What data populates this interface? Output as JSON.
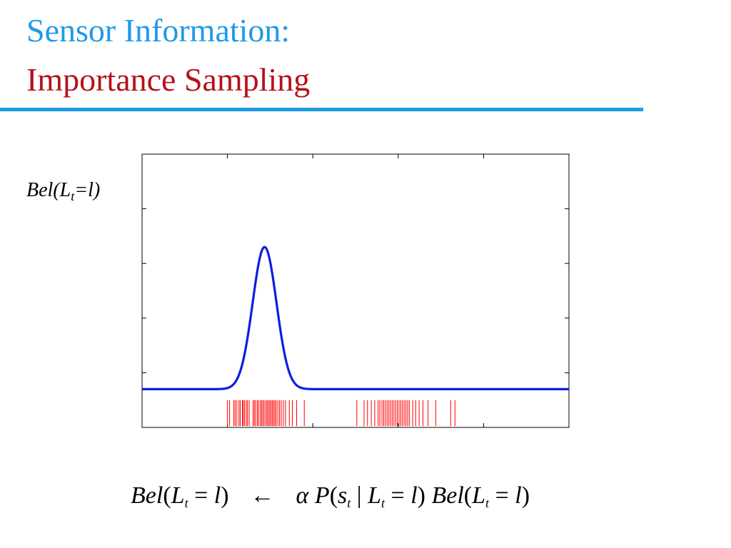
{
  "slide": {
    "title_line1": "Sensor Information:",
    "title_line2": "Importance Sampling",
    "title_color1": "#1f9ae8",
    "title_color2": "#b5121b",
    "rule_color": "#1b9be6"
  },
  "chart_data": {
    "type": "line",
    "title": "",
    "xlabel": "",
    "ylabel_main": "Bel(L",
    "ylabel_sub": "t",
    "ylabel_tail": "=l)",
    "xlim": [
      0,
      1
    ],
    "ylim": [
      0,
      1
    ],
    "grid": false,
    "series": [
      {
        "kind": "curve",
        "color": "#0b1fdc",
        "baseline": 0.14,
        "peak_x": 0.287,
        "peak_height": 0.52,
        "width": 0.028
      },
      {
        "kind": "sample-rug",
        "color": "#ff0000",
        "samples": [
          0.2,
          0.205,
          0.215,
          0.218,
          0.222,
          0.227,
          0.23,
          0.235,
          0.237,
          0.24,
          0.244,
          0.247,
          0.251,
          0.26,
          0.263,
          0.266,
          0.27,
          0.273,
          0.277,
          0.28,
          0.283,
          0.286,
          0.29,
          0.293,
          0.296,
          0.299,
          0.302,
          0.305,
          0.308,
          0.311,
          0.314,
          0.318,
          0.322,
          0.326,
          0.331,
          0.336,
          0.345,
          0.352,
          0.362,
          0.38,
          0.503,
          0.52,
          0.528,
          0.537,
          0.545,
          0.553,
          0.557,
          0.562,
          0.566,
          0.57,
          0.574,
          0.578,
          0.582,
          0.586,
          0.59,
          0.594,
          0.598,
          0.602,
          0.606,
          0.61,
          0.614,
          0.618,
          0.622,
          0.626,
          0.634,
          0.641,
          0.649,
          0.658,
          0.67,
          0.688,
          0.723,
          0.733
        ]
      }
    ]
  },
  "formula": {
    "lhs_bel": "Bel",
    "lhs_open": "(",
    "lhs_L": "L",
    "lhs_sub": "t",
    "lhs_eq": " = ",
    "lhs_l": "l",
    "lhs_close": ")",
    "arrow": "←",
    "alpha": "α",
    "p": "P",
    "p_open": "(",
    "s": "s",
    "s_sub": "t",
    "bar": " | ",
    "p_L": "L",
    "p_L_sub": "t",
    "p_eq": " = ",
    "p_l": "l",
    "p_close": ")",
    "rhs_bel": "Bel",
    "rhs_open": "(",
    "rhs_L": "L",
    "rhs_sub": "t",
    "rhs_eq": " = ",
    "rhs_l": "l",
    "rhs_close": ")"
  }
}
